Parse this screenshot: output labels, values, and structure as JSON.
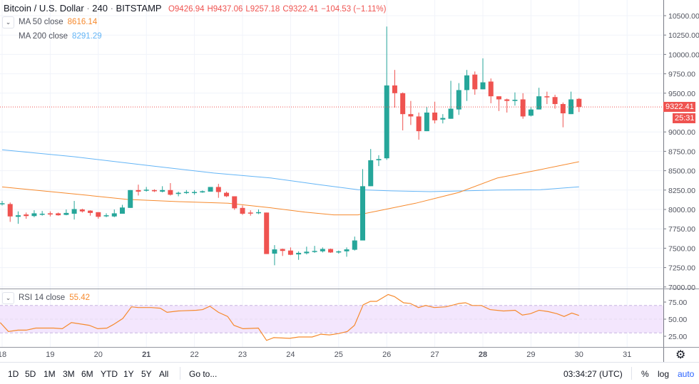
{
  "header": {
    "symbol": "Bitcoin / U.S. Dollar",
    "interval": "240",
    "exchange": "BITSTAMP",
    "open": "O9426.94",
    "high": "H9437.06",
    "low": "L9257.18",
    "close": "C9322.41",
    "change": "−104.53 (−1.11%)"
  },
  "indicators": {
    "ma50": {
      "label": "MA 50 close",
      "value": "8616.14",
      "color": "#f68a2e"
    },
    "ma200": {
      "label": "MA 200 close",
      "value": "8291.29",
      "color": "#64b5f6"
    },
    "rsi": {
      "label": "RSI 14 close",
      "value": "55.42",
      "color": "#f68a2e",
      "band_color": "#f3e6fd"
    }
  },
  "price_axis": {
    "last_price": "9322.41",
    "countdown": "25:31"
  },
  "colors": {
    "up": "#26a69a",
    "down": "#ef5350",
    "accent": "#2962ff"
  },
  "toolbar": {
    "ranges": [
      "1D",
      "5D",
      "1M",
      "3M",
      "6M",
      "YTD",
      "1Y",
      "5Y",
      "All"
    ],
    "goto": "Go to...",
    "time": "03:34:27 (UTC)",
    "percent": "%",
    "log": "log",
    "auto": "auto",
    "settings_icon": "gear-icon"
  },
  "chart_data": [
    {
      "type": "candlestick",
      "interval": "240",
      "start_day": 18,
      "x_ticks": [
        "18",
        "19",
        "20",
        "21",
        "22",
        "23",
        "24",
        "25",
        "26",
        "27",
        "28",
        "29",
        "30",
        "31"
      ],
      "bold_ticks": [
        "21",
        "28"
      ],
      "y_ticks": [
        "10500.00",
        "10250.00",
        "10000.00",
        "9750.00",
        "9500.00",
        "9000.00",
        "8750.00",
        "8500.00",
        "8250.00",
        "8000.00",
        "7750.00",
        "7500.00",
        "7250.00",
        "7000.00"
      ],
      "ylim": [
        7000,
        10500
      ],
      "grid": true,
      "ohlc": [
        [
          8070,
          8110,
          8050,
          8080
        ],
        [
          8070,
          8090,
          7840,
          7910
        ],
        [
          7905,
          7975,
          7815,
          7925
        ],
        [
          7935,
          7960,
          7880,
          7915
        ],
        [
          7915,
          7990,
          7900,
          7950
        ],
        [
          7935,
          7980,
          7920,
          7945
        ],
        [
          7950,
          7975,
          7910,
          7935
        ],
        [
          7950,
          7960,
          7920,
          7925
        ],
        [
          7930,
          8000,
          7925,
          7955
        ],
        [
          7945,
          8110,
          7870,
          8005
        ],
        [
          8000,
          8010,
          7960,
          7975
        ],
        [
          7985,
          7990,
          7920,
          7955
        ],
        [
          7965,
          7965,
          7880,
          7905
        ],
        [
          7915,
          7950,
          7900,
          7925
        ],
        [
          7910,
          8000,
          7900,
          7950
        ],
        [
          7945,
          8060,
          7945,
          8025
        ],
        [
          8020,
          8250,
          8020,
          8250
        ],
        [
          8250,
          8320,
          8180,
          8230
        ],
        [
          8245,
          8290,
          8230,
          8255
        ],
        [
          8250,
          8260,
          8225,
          8235
        ],
        [
          8230,
          8300,
          8220,
          8250
        ],
        [
          8250,
          8340,
          8180,
          8190
        ],
        [
          8200,
          8230,
          8170,
          8215
        ],
        [
          8215,
          8250,
          8200,
          8225
        ],
        [
          8215,
          8250,
          8190,
          8225
        ],
        [
          8220,
          8245,
          8215,
          8235
        ],
        [
          8230,
          8290,
          8230,
          8290
        ],
        [
          8290,
          8330,
          8150,
          8225
        ],
        [
          8215,
          8230,
          8160,
          8170
        ],
        [
          8170,
          8170,
          7995,
          8015
        ],
        [
          8020,
          8050,
          7930,
          7945
        ],
        [
          7960,
          7990,
          7920,
          7955
        ],
        [
          7955,
          8000,
          7940,
          7965
        ],
        [
          7960,
          7960,
          7425,
          7425
        ],
        [
          7430,
          7540,
          7280,
          7485
        ],
        [
          7490,
          7495,
          7400,
          7465
        ],
        [
          7470,
          7510,
          7410,
          7415
        ],
        [
          7420,
          7460,
          7350,
          7440
        ],
        [
          7435,
          7520,
          7420,
          7455
        ],
        [
          7455,
          7530,
          7440,
          7465
        ],
        [
          7460,
          7510,
          7445,
          7490
        ],
        [
          7490,
          7495,
          7440,
          7445
        ],
        [
          7445,
          7470,
          7430,
          7460
        ],
        [
          7460,
          7510,
          7390,
          7485
        ],
        [
          7480,
          7650,
          7470,
          7600
        ],
        [
          7600,
          8520,
          7600,
          8300
        ],
        [
          8300,
          8780,
          8300,
          8635
        ],
        [
          8635,
          8700,
          8560,
          8650
        ],
        [
          8660,
          10360,
          8640,
          9600
        ],
        [
          9600,
          9800,
          9315,
          9500
        ],
        [
          9500,
          9510,
          9020,
          9230
        ],
        [
          9230,
          9400,
          9090,
          9200
        ],
        [
          9200,
          9250,
          8900,
          9010
        ],
        [
          9010,
          9320,
          9010,
          9250
        ],
        [
          9250,
          9390,
          9110,
          9150
        ],
        [
          9160,
          9230,
          9110,
          9180
        ],
        [
          9170,
          9660,
          9170,
          9300
        ],
        [
          9290,
          9630,
          9220,
          9540
        ],
        [
          9540,
          9800,
          9400,
          9730
        ],
        [
          9740,
          9780,
          9480,
          9550
        ],
        [
          9550,
          9950,
          9550,
          9640
        ],
        [
          9650,
          9690,
          9370,
          9460
        ],
        [
          9460,
          9460,
          9270,
          9420
        ],
        [
          9420,
          9430,
          9250,
          9400
        ],
        [
          9400,
          9510,
          9340,
          9415
        ],
        [
          9420,
          9500,
          9170,
          9200
        ],
        [
          9210,
          9320,
          9200,
          9290
        ],
        [
          9290,
          9570,
          9290,
          9460
        ],
        [
          9460,
          9520,
          9360,
          9450
        ],
        [
          9450,
          9480,
          9300,
          9360
        ],
        [
          9360,
          9380,
          9060,
          9240
        ],
        [
          9230,
          9520,
          9230,
          9420
        ],
        [
          9426.94,
          9437.06,
          9257.18,
          9322.41
        ]
      ],
      "ma50": [
        [
          18,
          8290
        ],
        [
          19.5,
          8200
        ],
        [
          20.6,
          8130
        ],
        [
          21.7,
          8100
        ],
        [
          22.7,
          8080
        ],
        [
          23.6,
          8020
        ],
        [
          24.3,
          7965
        ],
        [
          24.9,
          7930
        ],
        [
          25.4,
          7930
        ],
        [
          25.8,
          7980
        ],
        [
          26.6,
          8080
        ],
        [
          27.5,
          8220
        ],
        [
          28.3,
          8405
        ],
        [
          29.2,
          8515
        ],
        [
          30,
          8616.14
        ]
      ],
      "ma200": [
        [
          18,
          8770
        ],
        [
          19.5,
          8680
        ],
        [
          21,
          8570
        ],
        [
          22.4,
          8470
        ],
        [
          23.6,
          8405
        ],
        [
          24.6,
          8320
        ],
        [
          25.4,
          8255
        ],
        [
          26.1,
          8240
        ],
        [
          26.9,
          8230
        ],
        [
          27.6,
          8240
        ],
        [
          28.3,
          8250
        ],
        [
          29.2,
          8255
        ],
        [
          30,
          8291.29
        ]
      ],
      "last_price": 9322.41
    },
    {
      "type": "line",
      "y_ticks": [
        "75.00",
        "50.00",
        "25.00"
      ],
      "band": [
        30,
        70
      ],
      "ylim": [
        10,
        95
      ],
      "points": [
        [
          17.96,
          45
        ],
        [
          18.13,
          32
        ],
        [
          18.33,
          34
        ],
        [
          18.5,
          34
        ],
        [
          18.7,
          37
        ],
        [
          19.07,
          37
        ],
        [
          19.25,
          36
        ],
        [
          19.44,
          45
        ],
        [
          19.81,
          41
        ],
        [
          19.99,
          36
        ],
        [
          20.18,
          37
        ],
        [
          20.31,
          42
        ],
        [
          20.51,
          51
        ],
        [
          20.69,
          68
        ],
        [
          20.83,
          67
        ],
        [
          21.1,
          67
        ],
        [
          21.29,
          66
        ],
        [
          21.43,
          60
        ],
        [
          21.66,
          62
        ],
        [
          22.04,
          63
        ],
        [
          22.17,
          64
        ],
        [
          22.32,
          69
        ],
        [
          22.5,
          60
        ],
        [
          22.69,
          54
        ],
        [
          22.82,
          41
        ],
        [
          23.01,
          36
        ],
        [
          23.33,
          37
        ],
        [
          23.5,
          19
        ],
        [
          23.65,
          23
        ],
        [
          23.98,
          22
        ],
        [
          24.17,
          24
        ],
        [
          24.45,
          24
        ],
        [
          24.63,
          28
        ],
        [
          24.81,
          27
        ],
        [
          25.0,
          29
        ],
        [
          25.18,
          32
        ],
        [
          25.33,
          41
        ],
        [
          25.51,
          71
        ],
        [
          25.66,
          76
        ],
        [
          25.79,
          76
        ],
        [
          26.03,
          86
        ],
        [
          26.16,
          83
        ],
        [
          26.35,
          74
        ],
        [
          26.49,
          73
        ],
        [
          26.66,
          67
        ],
        [
          26.81,
          70
        ],
        [
          26.99,
          67
        ],
        [
          27.23,
          68
        ],
        [
          27.51,
          73
        ],
        [
          27.64,
          74
        ],
        [
          27.78,
          70
        ],
        [
          27.97,
          70
        ],
        [
          28.15,
          64
        ],
        [
          28.43,
          62
        ],
        [
          28.67,
          63
        ],
        [
          28.82,
          56
        ],
        [
          28.99,
          58
        ],
        [
          29.17,
          63
        ],
        [
          29.36,
          61
        ],
        [
          29.54,
          58
        ],
        [
          29.69,
          54
        ],
        [
          29.85,
          59
        ],
        [
          30.0,
          55.42
        ]
      ]
    }
  ]
}
